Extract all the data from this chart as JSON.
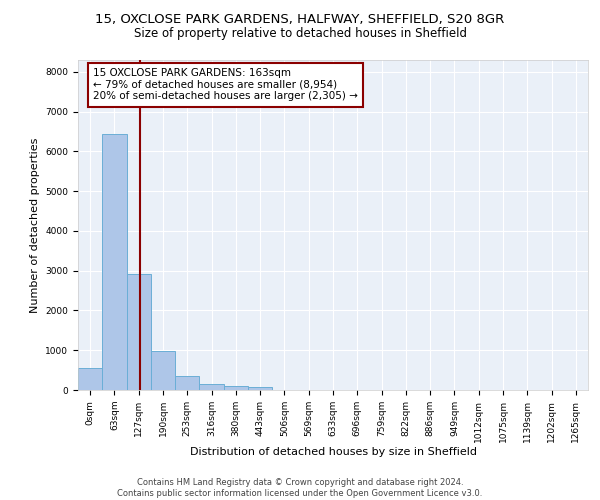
{
  "title_line1": "15, OXCLOSE PARK GARDENS, HALFWAY, SHEFFIELD, S20 8GR",
  "title_line2": "Size of property relative to detached houses in Sheffield",
  "xlabel": "Distribution of detached houses by size in Sheffield",
  "ylabel": "Number of detached properties",
  "categories": [
    "0sqm",
    "63sqm",
    "127sqm",
    "190sqm",
    "253sqm",
    "316sqm",
    "380sqm",
    "443sqm",
    "506sqm",
    "569sqm",
    "633sqm",
    "696sqm",
    "759sqm",
    "822sqm",
    "886sqm",
    "949sqm",
    "1012sqm",
    "1075sqm",
    "1139sqm",
    "1202sqm",
    "1265sqm"
  ],
  "bar_heights": [
    550,
    6450,
    2920,
    970,
    340,
    160,
    90,
    70,
    0,
    0,
    0,
    0,
    0,
    0,
    0,
    0,
    0,
    0,
    0,
    0,
    0
  ],
  "bar_color": "#aec6e8",
  "bar_edge_color": "#6aaed6",
  "vline_color": "#8b0000",
  "annotation_text": "15 OXCLOSE PARK GARDENS: 163sqm\n← 79% of detached houses are smaller (8,954)\n20% of semi-detached houses are larger (2,305) →",
  "annotation_box_color": "#8b0000",
  "annotation_box_fill": "#ffffff",
  "ylim": [
    0,
    8300
  ],
  "yticks": [
    0,
    1000,
    2000,
    3000,
    4000,
    5000,
    6000,
    7000,
    8000
  ],
  "background_color": "#eaf0f8",
  "grid_color": "#ffffff",
  "footer_line1": "Contains HM Land Registry data © Crown copyright and database right 2024.",
  "footer_line2": "Contains public sector information licensed under the Open Government Licence v3.0.",
  "title_fontsize": 9.5,
  "subtitle_fontsize": 8.5,
  "axis_label_fontsize": 8,
  "tick_fontsize": 6.5,
  "annotation_fontsize": 7.5,
  "footer_fontsize": 6
}
